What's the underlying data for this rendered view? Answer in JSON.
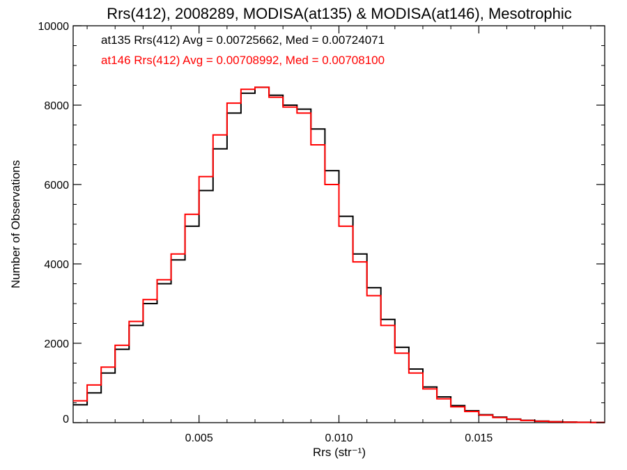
{
  "chart_data": {
    "type": "line",
    "title": "Rrs(412), 2008289, MODISA(at135) & MODISA(at146), Mesotrophic",
    "xlabel": "Rrs (str⁻¹)",
    "ylabel": "Number of Observations",
    "xlim": [
      0.0005,
      0.0195
    ],
    "ylim": [
      0,
      10000
    ],
    "xticks": [
      0.005,
      0.01,
      0.015
    ],
    "xtick_labels": [
      "0.005",
      "0.010",
      "0.015"
    ],
    "yticks": [
      0,
      2000,
      4000,
      6000,
      8000,
      10000
    ],
    "ytick_labels": [
      "0",
      "2000",
      "4000",
      "6000",
      "8000",
      "10000"
    ],
    "grid": false,
    "legend_position": "top-left",
    "annotations": [
      "at135 Rrs(412) Avg = 0.00725662, Med = 0.00724071",
      "at146 Rrs(412) Avg = 0.00708992, Med = 0.00708100"
    ],
    "series": [
      {
        "color": "#000000",
        "x": [
          0.0005,
          0.001,
          0.0015,
          0.002,
          0.0025,
          0.003,
          0.0035,
          0.004,
          0.0045,
          0.005,
          0.0055,
          0.006,
          0.0065,
          0.007,
          0.0075,
          0.008,
          0.0085,
          0.009,
          0.0095,
          0.01,
          0.0105,
          0.011,
          0.0115,
          0.012,
          0.0125,
          0.013,
          0.0135,
          0.014,
          0.0145,
          0.015,
          0.0155,
          0.016,
          0.0165,
          0.017,
          0.0175,
          0.018,
          0.0185,
          0.019,
          0.0195
        ],
        "y": [
          450,
          750,
          1250,
          1850,
          2450,
          3000,
          3500,
          4100,
          4950,
          5850,
          6900,
          7800,
          8300,
          8450,
          8250,
          8000,
          7900,
          7400,
          6350,
          5200,
          4250,
          3400,
          2600,
          1900,
          1350,
          900,
          650,
          430,
          300,
          200,
          140,
          90,
          60,
          40,
          25,
          15,
          10,
          5,
          5
        ]
      },
      {
        "color": "#ff0000",
        "x": [
          0.0005,
          0.001,
          0.0015,
          0.002,
          0.0025,
          0.003,
          0.0035,
          0.004,
          0.0045,
          0.005,
          0.0055,
          0.006,
          0.0065,
          0.007,
          0.0075,
          0.008,
          0.0085,
          0.009,
          0.0095,
          0.01,
          0.0105,
          0.011,
          0.0115,
          0.012,
          0.0125,
          0.013,
          0.0135,
          0.014,
          0.0145,
          0.015,
          0.0155,
          0.016,
          0.0165,
          0.017,
          0.0175,
          0.018,
          0.0185,
          0.019,
          0.0195
        ],
        "y": [
          550,
          950,
          1400,
          1950,
          2550,
          3100,
          3600,
          4250,
          5250,
          6200,
          7250,
          8050,
          8400,
          8450,
          8200,
          7950,
          7800,
          7000,
          6000,
          4950,
          4050,
          3200,
          2450,
          1750,
          1250,
          850,
          600,
          400,
          280,
          190,
          130,
          85,
          55,
          35,
          22,
          14,
          9,
          5,
          5
        ]
      }
    ]
  }
}
